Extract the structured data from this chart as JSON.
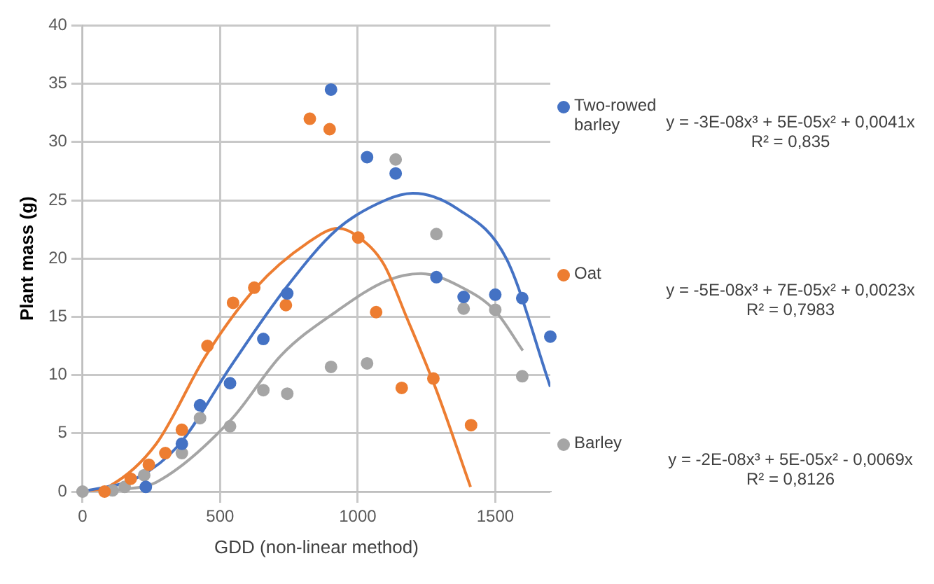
{
  "chart_data": {
    "type": "scatter",
    "xlabel": "GDD (non-linear method)",
    "ylabel": "Plant mass (g)",
    "xlim": [
      0,
      1700
    ],
    "ylim": [
      0,
      40
    ],
    "xticks": [
      0,
      500,
      1000,
      1500
    ],
    "yticks": [
      0,
      5,
      10,
      15,
      20,
      25,
      30,
      35,
      40
    ],
    "grid": true,
    "legend": "right",
    "annotations": [
      "y = -3E-08x³ + 5E-05x² + 0,0041x",
      "R² = 0,835",
      "y = -5E-08x³ + 7E-05x² + 0,0023x",
      "R² = 0,7983",
      "y = -2E-08x³ + 5E-05x² - 0,0069x",
      "R² = 0,8126"
    ],
    "series": [
      {
        "name": "Two-rowed barley",
        "color": "#4472c4",
        "marker": "circle",
        "x": [
          230,
          361,
          427,
          536,
          657,
          744,
          903,
          1034,
          1138,
          1286,
          1385,
          1500,
          1598,
          1700
        ],
        "values": [
          0.4,
          4.1,
          7.4,
          9.3,
          13.1,
          17,
          34.5,
          28.7,
          27.3,
          18.4,
          16.7,
          16.9,
          16.6,
          13.3
        ]
      },
      {
        "name": "Oat",
        "color": "#ed7d31",
        "marker": "circle",
        "x": [
          80,
          175,
          241,
          301,
          361,
          454,
          547,
          624,
          739,
          826,
          898,
          1002,
          1067,
          1160,
          1275,
          1412
        ],
        "values": [
          0,
          1.1,
          2.3,
          3.3,
          5.3,
          12.5,
          16.2,
          17.5,
          16,
          32,
          31.1,
          21.8,
          15.4,
          8.9,
          9.7,
          5.7
        ]
      },
      {
        "name": "Barley",
        "color": "#a5a5a5",
        "marker": "circle",
        "x": [
          0,
          109,
          153,
          224,
          361,
          427,
          536,
          657,
          744,
          903,
          1034,
          1138,
          1286,
          1385,
          1500,
          1598
        ],
        "values": [
          0,
          0.1,
          0.4,
          1.4,
          3.3,
          6.3,
          5.6,
          8.7,
          8.4,
          10.7,
          11,
          28.5,
          22.1,
          15.7,
          15.6,
          9.9
        ]
      },
      {
        "type": "line",
        "color": "#4472c4",
        "x": [
          0,
          200,
          350,
          540,
          740,
          925,
          1100,
          1200,
          1360,
          1540,
          1700
        ],
        "values": [
          0,
          1.2,
          4,
          10.8,
          17.5,
          22.5,
          25,
          25.6,
          24.3,
          20,
          9
        ]
      },
      {
        "type": "line",
        "color": "#ed7d31",
        "x": [
          0,
          100,
          268,
          449,
          630,
          815,
          930,
          1000,
          1095,
          1177,
          1286,
          1410
        ],
        "values": [
          0,
          0.5,
          4.1,
          11.7,
          17.5,
          21.3,
          22.6,
          21.9,
          19.5,
          15,
          8.7,
          0.4
        ]
      },
      {
        "type": "line",
        "color": "#a5a5a5",
        "x": [
          0,
          150,
          268,
          541,
          722,
          925,
          1106,
          1230,
          1380,
          1500,
          1600
        ],
        "values": [
          0,
          0.2,
          0.8,
          6.2,
          11.7,
          15.5,
          18.1,
          18.7,
          17.5,
          15.5,
          12.1
        ]
      }
    ]
  }
}
